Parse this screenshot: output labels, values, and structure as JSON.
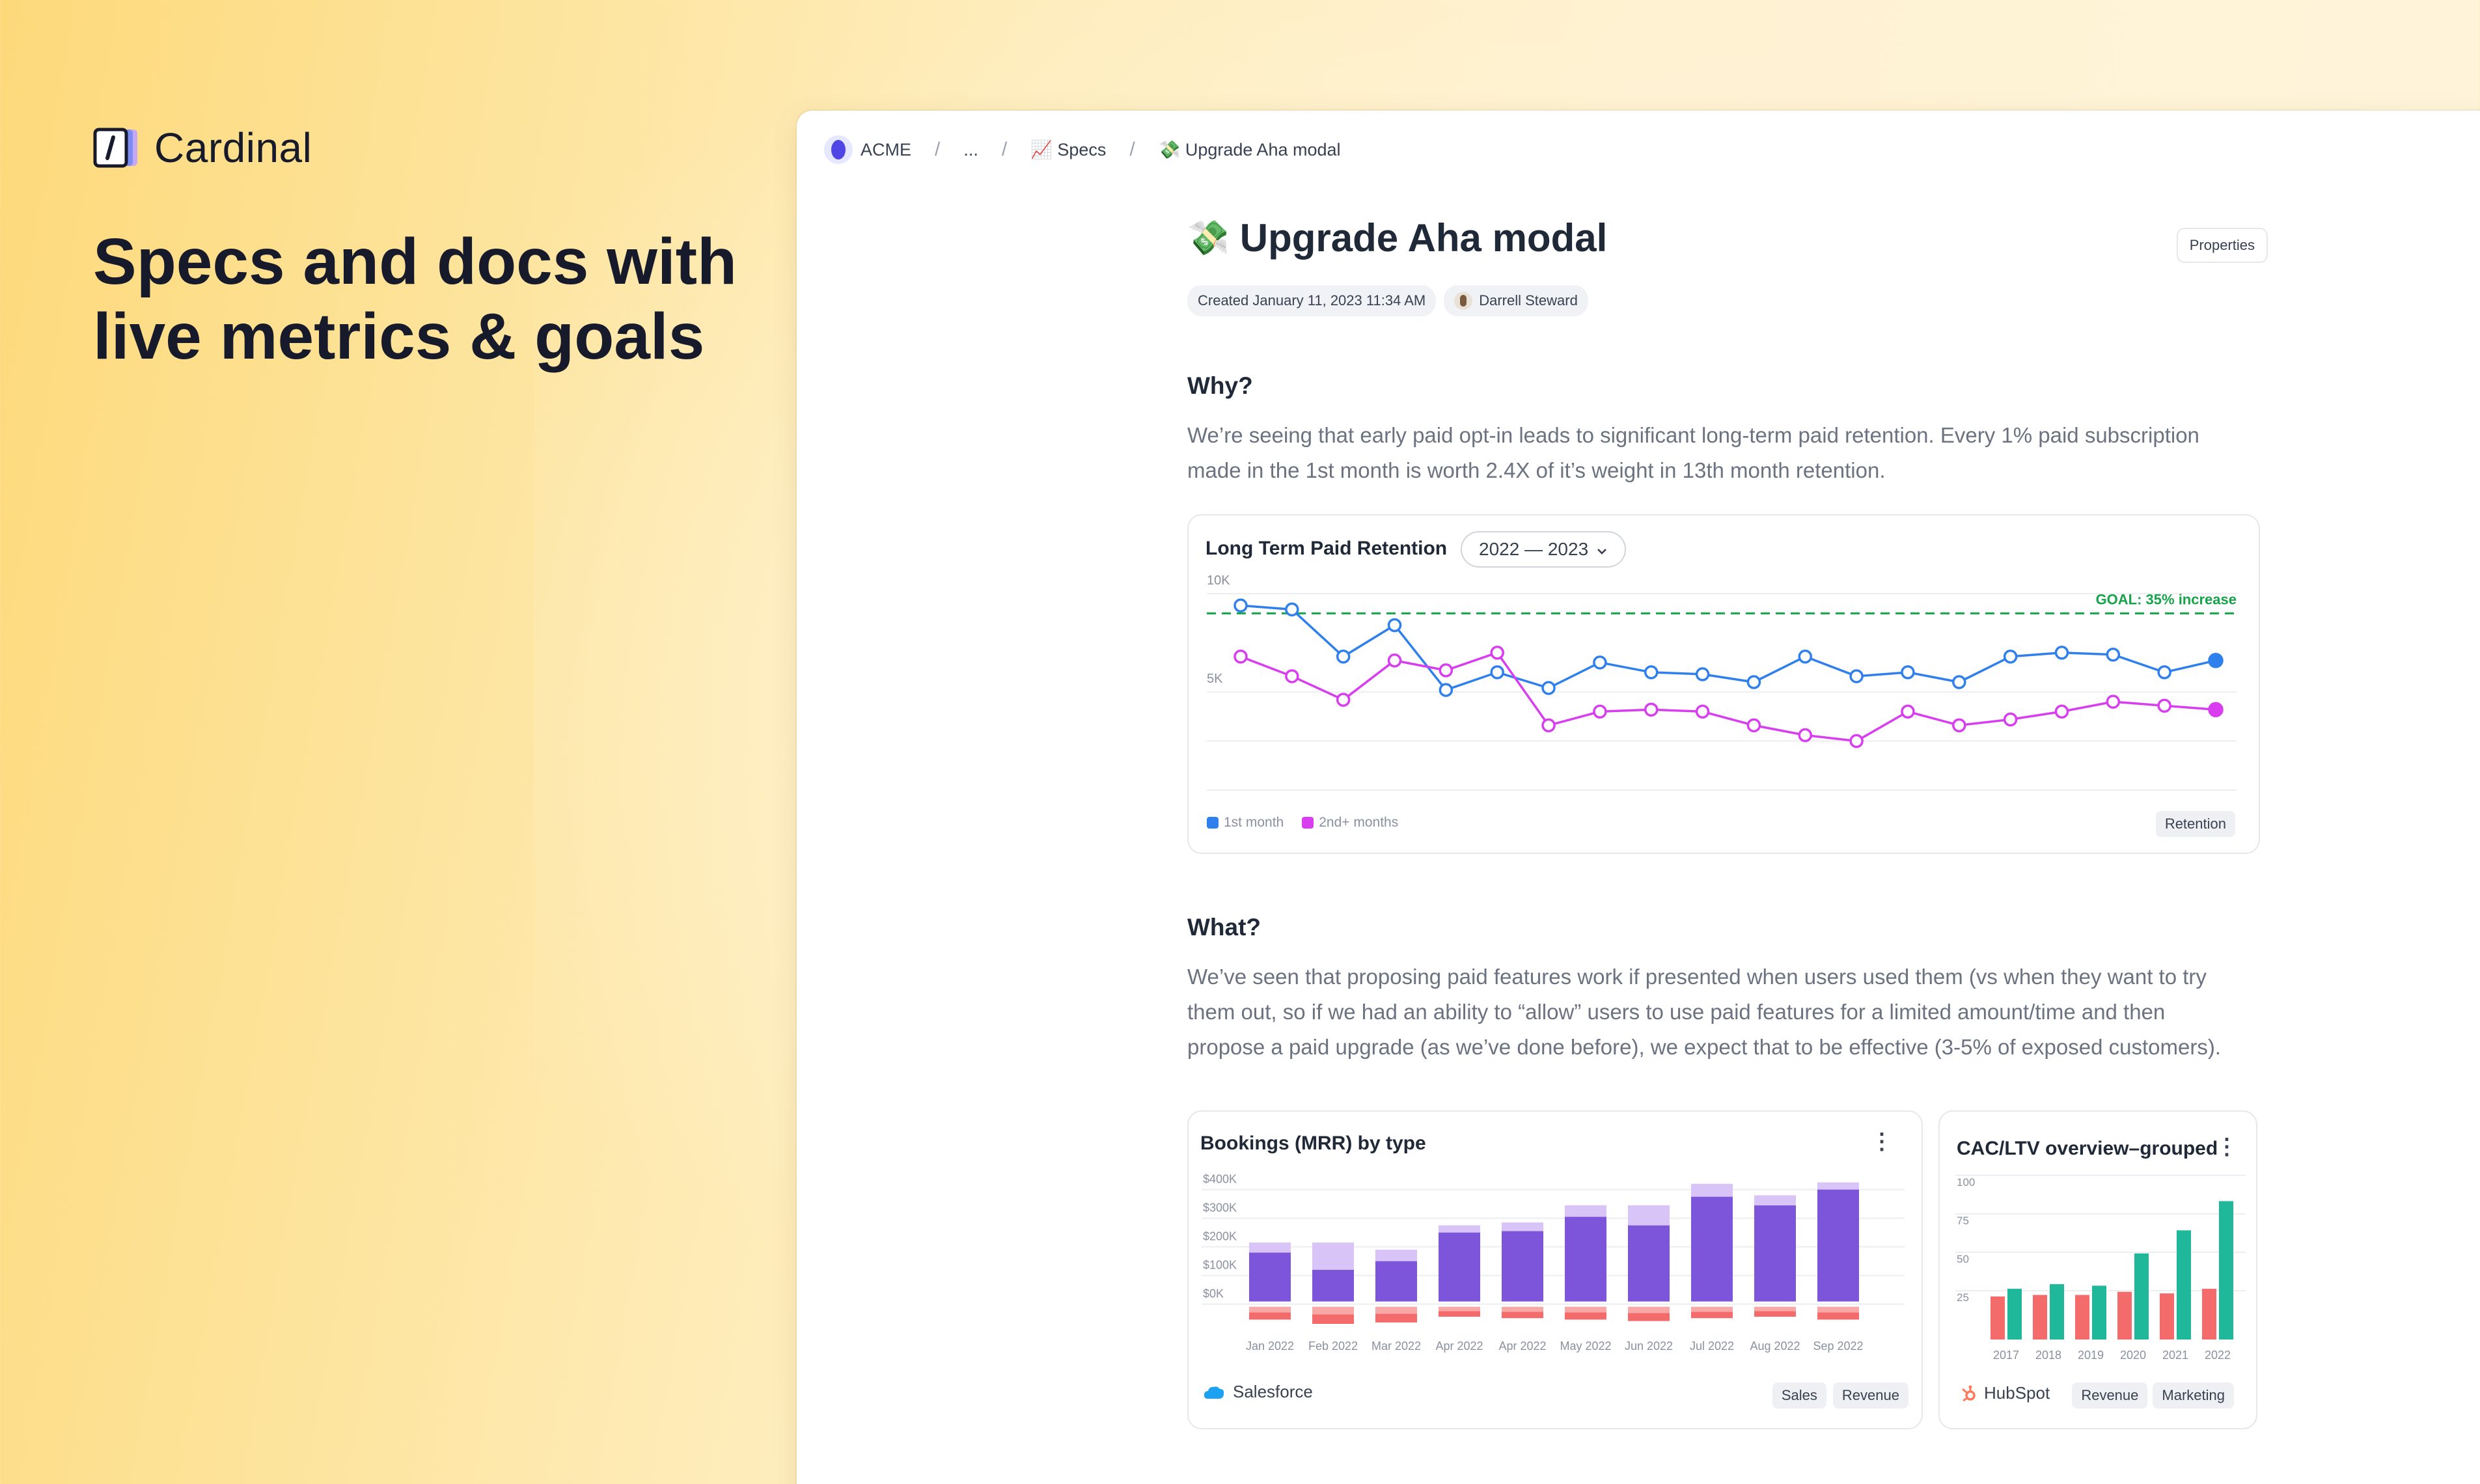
{
  "brand": {
    "name": "Cardinal"
  },
  "headline": "Specs and docs with live metrics & goals",
  "breadcrumb": {
    "items": [
      "ACME",
      "...",
      "📈 Specs",
      "💸 Upgrade Aha modal"
    ],
    "separator": "/"
  },
  "doc": {
    "title": "Upgrade Aha modal",
    "title_emoji": "💸",
    "properties_label": "Properties",
    "created": "Created January 11, 2023 11:34 AM",
    "author": "Darrell Steward",
    "why_heading": "Why?",
    "why_text": "We’re seeing that early paid opt-in leads to significant long-term paid retention. Every 1% paid subscription made in the 1st month is worth 2.4X of it’s weight in 13th month retention.",
    "what_heading": "What?",
    "what_text": "We’ve seen that proposing paid features work if presented when users used them (vs when they want to try them out, so if we had an ability to “allow” users to use paid features for a limited amount/time and then propose a paid upgrade (as we’ve done before), we expect that to be effective (3-5% of exposed customers)."
  },
  "retention_card": {
    "title": "Long Term Paid Retention",
    "range_select": "2022 — 2023",
    "goal_label": "GOAL: 35% increase",
    "tag": "Retention"
  },
  "bookings_card": {
    "title": "Bookings (MRR) by type",
    "source": "Salesforce",
    "tags": [
      "Sales",
      "Revenue"
    ]
  },
  "cac_card": {
    "title": "CAC/LTV overview–grouped",
    "source": "HubSpot",
    "tags": [
      "Revenue",
      "Marketing"
    ]
  },
  "colors": {
    "blue": "#2f80ed",
    "magenta": "#d83df0",
    "goal": "#16a34a",
    "purple": "#7c55db",
    "lavender": "#d8c4f6",
    "red": "#f46b6b",
    "teal": "#1fb89a"
  },
  "chart_data": [
    {
      "type": "line",
      "title": "Long Term Paid Retention",
      "yticks": [
        "10K",
        "5K"
      ],
      "ylim": [
        0,
        11000
      ],
      "goal": 9000,
      "legend_placement": "bottom-left",
      "series": [
        {
          "name": "1st month",
          "values": [
            9400,
            9200,
            6800,
            8400,
            5100,
            6000,
            5200,
            6500,
            6000,
            5900,
            5500,
            6800,
            5800,
            6000,
            5500,
            6800,
            7000,
            6900,
            6000,
            6600
          ]
        },
        {
          "name": "2nd+ months",
          "values": [
            6800,
            5800,
            4600,
            6600,
            6100,
            7000,
            3300,
            4000,
            4100,
            4000,
            3300,
            2800,
            2500,
            4000,
            3300,
            3600,
            4000,
            4500,
            4300,
            4100
          ]
        }
      ]
    },
    {
      "type": "bar",
      "title": "Bookings (MRR) by type",
      "categories": [
        "Jan 2022",
        "Feb 2022",
        "Mar 2022",
        "Apr 2022",
        "Apr 2022",
        "May 2022",
        "Jun 2022",
        "Jul 2022",
        "Aug 2022",
        "Sep 2022"
      ],
      "yticks": [
        "$400K",
        "$300K",
        "$200K",
        "$100K",
        "$0K"
      ],
      "ylim": [
        -60,
        440
      ],
      "series": [
        {
          "name": "",
          "values": [
            180,
            120,
            150,
            250,
            255,
            305,
            275,
            375,
            345,
            400
          ]
        },
        {
          "name": "",
          "values": [
            35,
            95,
            40,
            25,
            30,
            40,
            70,
            45,
            35,
            25
          ]
        },
        {
          "name": "",
          "values": [
            -45,
            -60,
            -55,
            -35,
            -40,
            -45,
            -50,
            -40,
            -35,
            -45
          ]
        }
      ]
    },
    {
      "type": "bar",
      "title": "CAC/LTV overview–grouped",
      "categories": [
        "2017",
        "2018",
        "2019",
        "2020",
        "2021",
        "2022"
      ],
      "yticks": [
        "100",
        "75",
        "50",
        "25"
      ],
      "ylim": [
        0,
        105
      ],
      "series": [
        {
          "name": "",
          "values": [
            28,
            29,
            29,
            31,
            30,
            33
          ]
        },
        {
          "name": "",
          "values": [
            33,
            36,
            35,
            56,
            71,
            90
          ]
        }
      ]
    }
  ]
}
